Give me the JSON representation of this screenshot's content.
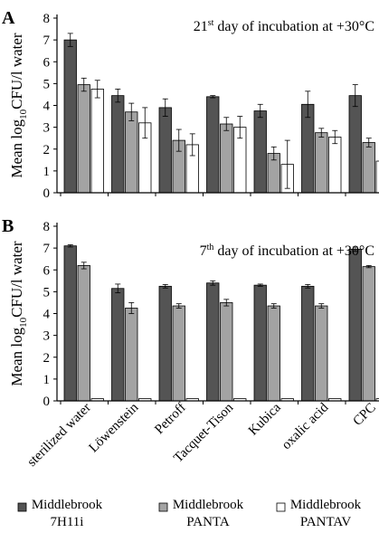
{
  "colors": {
    "s1": "#545454",
    "s2": "#a3a3a3",
    "s3": "#ffffff"
  },
  "categories": [
    "sterilized water",
    "Löwenstein",
    "Petroff",
    "Tacquet-Tison",
    "Kubica",
    "oxalic acid",
    "CPC"
  ],
  "legend": {
    "s1": [
      "Middlebrook",
      "7H11i"
    ],
    "s2": [
      "Middlebrook",
      "PANTA"
    ],
    "s3": [
      "Middlebrook",
      "PANTAV"
    ]
  },
  "ylabel": {
    "main": "Mean log",
    "sub": "10",
    "rest": "CFU/l water"
  },
  "chart_data": [
    {
      "type": "bar",
      "panel": "A",
      "title": {
        "sup": "st",
        "pre": "21",
        "post": " day of incubation at +30°C"
      },
      "categories": [
        "sterilized water",
        "Löwenstein",
        "Petroff",
        "Tacquet-Tison",
        "Kubica",
        "oxalic acid",
        "CPC"
      ],
      "ylim": [
        0,
        8
      ],
      "yticks": [
        "0",
        "1",
        "2",
        "3",
        "4",
        "5",
        "6",
        "7",
        "8"
      ],
      "series": [
        {
          "name": "Middlebrook 7H11i",
          "values": [
            7.0,
            4.45,
            3.9,
            4.4,
            3.75,
            4.05,
            4.45
          ],
          "errors": [
            0.3,
            0.3,
            0.4,
            0.05,
            0.3,
            0.6,
            0.5
          ]
        },
        {
          "name": "Middlebrook PANTA",
          "values": [
            4.95,
            3.7,
            2.4,
            3.15,
            1.8,
            2.75,
            2.3
          ],
          "errors": [
            0.3,
            0.4,
            0.5,
            0.3,
            0.3,
            0.2,
            0.2
          ]
        },
        {
          "name": "Middlebrook PANTAV",
          "values": [
            4.75,
            3.2,
            2.2,
            3.0,
            1.3,
            2.55,
            1.45
          ],
          "errors": [
            0.4,
            0.7,
            0.5,
            0.5,
            1.1,
            0.3,
            1.2
          ]
        }
      ]
    },
    {
      "type": "bar",
      "panel": "B",
      "title": {
        "sup": "th",
        "pre": "7",
        "post": " day of incubation at +30°C"
      },
      "categories": [
        "sterilized water",
        "Löwenstein",
        "Petroff",
        "Tacquet-Tison",
        "Kubica",
        "oxalic acid",
        "CPC"
      ],
      "ylim": [
        0,
        8
      ],
      "yticks": [
        "0",
        "1",
        "2",
        "3",
        "4",
        "5",
        "6",
        "7",
        "8"
      ],
      "series": [
        {
          "name": "Middlebrook 7H11i",
          "values": [
            7.1,
            5.15,
            5.25,
            5.4,
            5.3,
            5.25,
            6.95
          ],
          "errors": [
            0.05,
            0.2,
            0.08,
            0.1,
            0.05,
            0.08,
            0.1
          ]
        },
        {
          "name": "Middlebrook PANTA",
          "values": [
            6.2,
            4.25,
            4.35,
            4.5,
            4.35,
            4.35,
            6.15
          ],
          "errors": [
            0.15,
            0.25,
            0.1,
            0.15,
            0.1,
            0.1,
            0.05
          ]
        },
        {
          "name": "Middlebrook PANTAV",
          "values": [
            0.1,
            0.1,
            0.1,
            0.1,
            0.1,
            0.1,
            0.1
          ],
          "errors": [
            0,
            0,
            0,
            0,
            0,
            0,
            0
          ]
        }
      ]
    }
  ]
}
